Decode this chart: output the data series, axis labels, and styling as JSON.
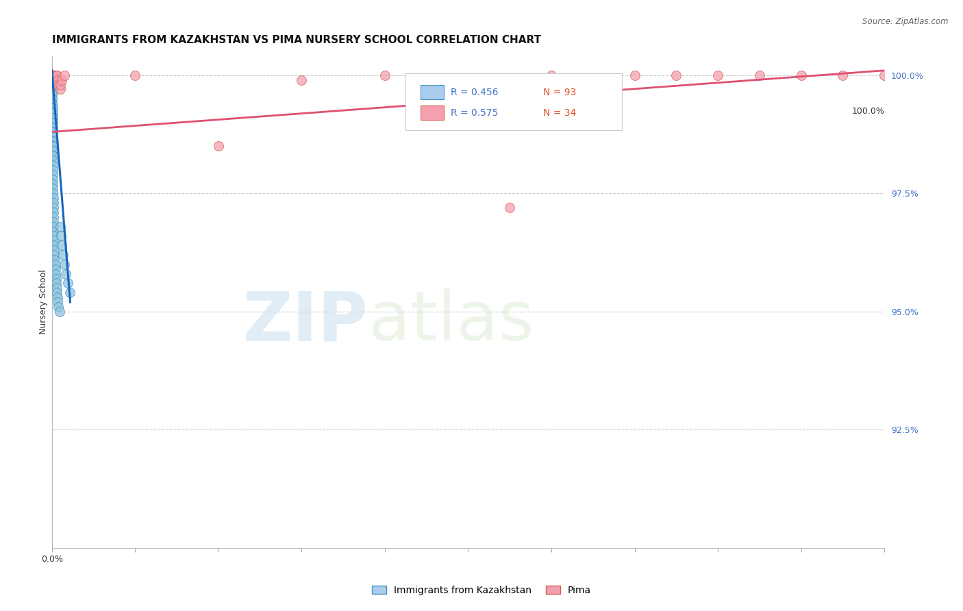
{
  "title": "IMMIGRANTS FROM KAZAKHSTAN VS PIMA NURSERY SCHOOL CORRELATION CHART",
  "source": "Source: ZipAtlas.com",
  "ylabel": "Nursery School",
  "ytick_labels": [
    "100.0%",
    "97.5%",
    "95.0%",
    "92.5%"
  ],
  "ytick_values": [
    1.0,
    0.975,
    0.95,
    0.925
  ],
  "series_kazakhstan": {
    "color": "#92c5de",
    "edge_color": "#4393c3",
    "x": [
      0.0,
      0.0,
      0.0,
      0.0,
      0.0,
      0.0,
      0.0,
      0.0,
      0.0,
      0.0,
      0.0,
      0.0,
      0.0,
      0.0,
      0.0,
      0.0,
      0.0,
      0.0,
      0.0,
      0.0,
      0.0,
      0.0,
      0.0,
      0.0,
      0.0,
      0.0,
      0.0,
      0.0,
      0.0,
      0.0,
      0.001,
      0.001,
      0.001,
      0.001,
      0.001,
      0.001,
      0.001,
      0.001,
      0.001,
      0.001,
      0.001,
      0.001,
      0.001,
      0.001,
      0.001,
      0.001,
      0.001,
      0.001,
      0.001,
      0.001,
      0.001,
      0.001,
      0.001,
      0.001,
      0.001,
      0.001,
      0.001,
      0.001,
      0.001,
      0.001,
      0.002,
      0.002,
      0.002,
      0.002,
      0.002,
      0.002,
      0.002,
      0.002,
      0.002,
      0.003,
      0.003,
      0.003,
      0.003,
      0.003,
      0.004,
      0.004,
      0.004,
      0.005,
      0.005,
      0.006,
      0.006,
      0.007,
      0.007,
      0.008,
      0.009,
      0.01,
      0.011,
      0.012,
      0.013,
      0.015,
      0.017,
      0.019,
      0.022
    ],
    "y": [
      1.0,
      1.0,
      1.0,
      1.0,
      1.0,
      1.0,
      1.0,
      1.0,
      1.0,
      1.0,
      0.999,
      0.999,
      0.999,
      0.999,
      0.999,
      0.998,
      0.998,
      0.998,
      0.998,
      0.997,
      0.997,
      0.997,
      0.997,
      0.996,
      0.996,
      0.996,
      0.995,
      0.995,
      0.994,
      0.994,
      0.993,
      0.993,
      0.992,
      0.992,
      0.991,
      0.991,
      0.99,
      0.99,
      0.989,
      0.989,
      0.988,
      0.988,
      0.987,
      0.987,
      0.986,
      0.986,
      0.985,
      0.985,
      0.984,
      0.984,
      0.983,
      0.983,
      0.982,
      0.981,
      0.98,
      0.979,
      0.978,
      0.977,
      0.976,
      0.975,
      0.974,
      0.973,
      0.972,
      0.971,
      0.97,
      0.969,
      0.968,
      0.967,
      0.966,
      0.965,
      0.964,
      0.963,
      0.962,
      0.961,
      0.96,
      0.959,
      0.958,
      0.957,
      0.956,
      0.955,
      0.954,
      0.953,
      0.952,
      0.951,
      0.95,
      0.968,
      0.966,
      0.964,
      0.962,
      0.96,
      0.958,
      0.956,
      0.954
    ]
  },
  "series_pima": {
    "color": "#f4a0b0",
    "edge_color": "#d6604d",
    "x": [
      0.0,
      0.0,
      0.0,
      0.001,
      0.001,
      0.001,
      0.002,
      0.002,
      0.003,
      0.003,
      0.004,
      0.004,
      0.005,
      0.006,
      0.007,
      0.008,
      0.01,
      0.01,
      0.012,
      0.015,
      0.1,
      0.2,
      0.3,
      0.4,
      0.55,
      0.6,
      0.65,
      0.7,
      0.75,
      0.8,
      0.85,
      0.9,
      0.95,
      1.0
    ],
    "y": [
      1.0,
      1.0,
      1.0,
      1.0,
      1.0,
      1.0,
      1.0,
      1.0,
      1.0,
      1.0,
      1.0,
      1.0,
      1.0,
      1.0,
      0.999,
      0.998,
      0.997,
      0.998,
      0.999,
      1.0,
      1.0,
      0.985,
      0.999,
      1.0,
      0.972,
      1.0,
      0.995,
      1.0,
      1.0,
      1.0,
      1.0,
      1.0,
      1.0,
      1.0
    ]
  },
  "trendline_kaz": {
    "color": "#1565c0",
    "x_start": 0.0,
    "x_end": 0.022,
    "y_start": 1.001,
    "y_end": 0.952
  },
  "trendline_pima": {
    "color": "#e05070",
    "x_start": 0.0,
    "x_end": 1.0,
    "y_start": 0.988,
    "y_end": 1.001
  },
  "xlim": [
    0.0,
    1.0
  ],
  "ylim": [
    0.9,
    1.004
  ],
  "grid_color": "#cccccc",
  "background_color": "#ffffff",
  "watermark_zip": "ZIP",
  "watermark_atlas": "atlas",
  "title_fontsize": 11,
  "axis_label_fontsize": 9,
  "tick_fontsize": 9,
  "legend_box_color_kaz": "#aaccee",
  "legend_box_color_pima": "#f4a0b0",
  "legend_text_r_kaz": "R = 0.456",
  "legend_text_n_kaz": "N = 93",
  "legend_text_r_pima": "R = 0.575",
  "legend_text_n_pima": "N = 34",
  "bottom_legend_kaz": "Immigrants from Kazakhstan",
  "bottom_legend_pima": "Pima"
}
